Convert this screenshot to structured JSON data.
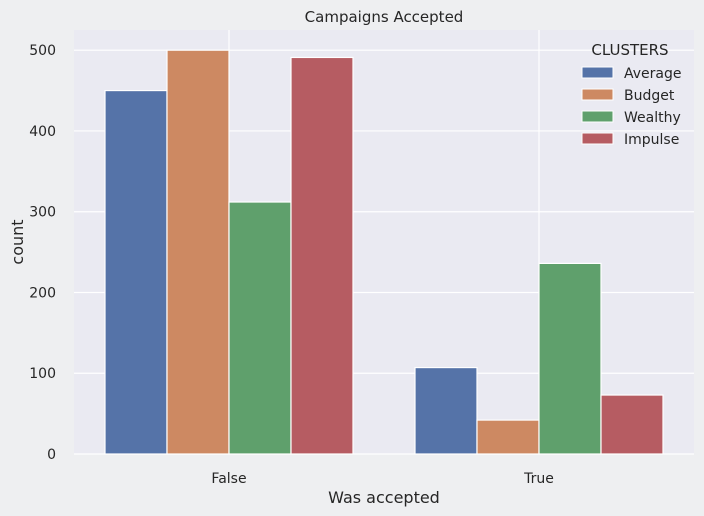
{
  "chart_data": {
    "type": "bar",
    "title": "Campaigns Accepted",
    "xlabel": "Was accepted",
    "ylabel": "count",
    "categories": [
      "False",
      "True"
    ],
    "ylim": [
      0,
      525
    ],
    "yticks": [
      0,
      100,
      200,
      300,
      400,
      500
    ],
    "grid": true,
    "legend": {
      "title": "CLUSTERS",
      "position": "top-right"
    },
    "series": [
      {
        "name": "Average",
        "color": "#5573a8",
        "values": [
          450,
          107
        ]
      },
      {
        "name": "Budget",
        "color": "#cd8962",
        "values": [
          500,
          42
        ]
      },
      {
        "name": "Wealthy",
        "color": "#5fa06c",
        "values": [
          312,
          236
        ]
      },
      {
        "name": "Impulse",
        "color": "#b65c62",
        "values": [
          491,
          73
        ]
      }
    ]
  }
}
